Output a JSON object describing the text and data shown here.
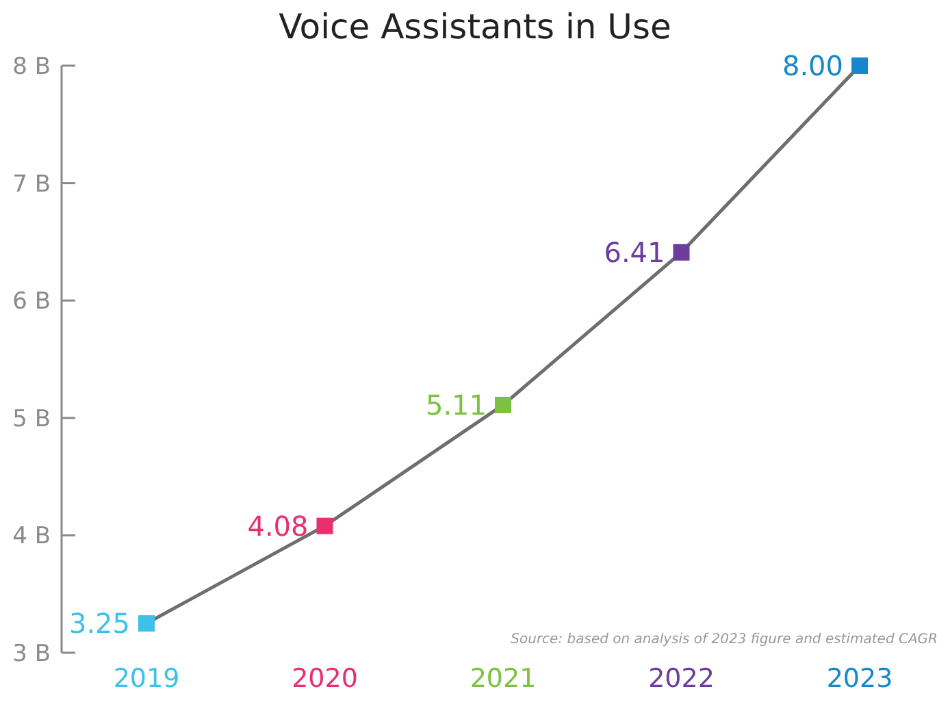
{
  "chart_data": {
    "type": "line",
    "title": "Voice Assistants in Use",
    "categories": [
      "2019",
      "2020",
      "2021",
      "2022",
      "2023"
    ],
    "series": [
      {
        "color": "#6e6e6e",
        "colors": [
          "#3dc1e8",
          "#e8306e",
          "#7dc142",
          "#6b3d9c",
          "#1787cc"
        ],
        "values": [
          3.25,
          4.08,
          5.11,
          6.41,
          8.0
        ],
        "value_labels": [
          "3.25",
          "4.08",
          "5.11",
          "6.41",
          "8.00"
        ]
      }
    ],
    "ylim": [
      3,
      8
    ],
    "yticks": [
      {
        "value": 3,
        "label": "3 B"
      },
      {
        "value": 4,
        "label": "4 B"
      },
      {
        "value": 5,
        "label": "5 B"
      },
      {
        "value": 6,
        "label": "6 B"
      },
      {
        "value": 7,
        "label": "7 B"
      },
      {
        "value": 8,
        "label": "8 B"
      }
    ],
    "marker": "square",
    "line_style": "solid",
    "annotations": [
      "Source: based on analysis of 2023 figure and estimated CAGR"
    ]
  }
}
